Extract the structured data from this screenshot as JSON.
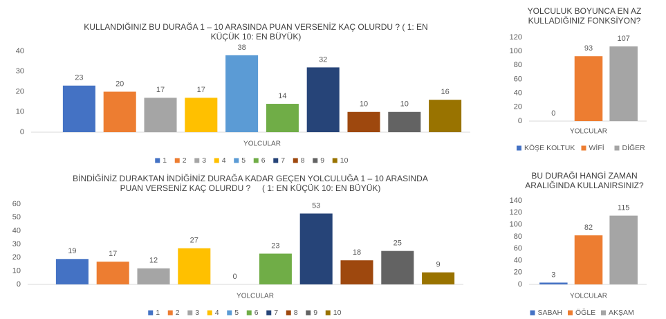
{
  "chart_data": [
    {
      "type": "bar",
      "title": [
        "KULLANDIĞINIZ BU DURAĞA 1 – 10 ARASINDA PUAN VERSENİZ KAÇ OLURDU ? ( 1: EN",
        "KÜÇÜK 10: EN BÜYÜK)"
      ],
      "categories": [
        "YOLCULAR"
      ],
      "ylim": [
        0,
        40
      ],
      "yticks": [
        0,
        10,
        20,
        30,
        40
      ],
      "series": [
        {
          "name": "1",
          "color": "#4472c4",
          "values": [
            23
          ]
        },
        {
          "name": "2",
          "color": "#ed7d31",
          "values": [
            20
          ]
        },
        {
          "name": "3",
          "color": "#a5a5a5",
          "values": [
            17
          ]
        },
        {
          "name": "4",
          "color": "#ffc000",
          "values": [
            17
          ]
        },
        {
          "name": "5",
          "color": "#5b9bd5",
          "values": [
            38
          ]
        },
        {
          "name": "6",
          "color": "#70ad47",
          "values": [
            14
          ]
        },
        {
          "name": "7",
          "color": "#264478",
          "values": [
            32
          ]
        },
        {
          "name": "8",
          "color": "#9e480e",
          "values": [
            10
          ]
        },
        {
          "name": "9",
          "color": "#636363",
          "values": [
            10
          ]
        },
        {
          "name": "10",
          "color": "#997300",
          "values": [
            16
          ]
        }
      ]
    },
    {
      "type": "bar",
      "title": [
        "BİNDİĞİNİZ DURAKTAN İNDİĞİNİZ DURAĞA KADAR GEÇEN YOLCULUĞA 1 – 10 ARASINDA",
        "PUAN VERSENİZ KAÇ OLURDU ?     ( 1: EN KÜÇÜK 10: EN BÜYÜK)"
      ],
      "categories": [
        "YOLCULAR"
      ],
      "ylim": [
        0,
        60
      ],
      "yticks": [
        0,
        10,
        20,
        30,
        40,
        50,
        60
      ],
      "series": [
        {
          "name": "1",
          "color": "#4472c4",
          "values": [
            19
          ]
        },
        {
          "name": "2",
          "color": "#ed7d31",
          "values": [
            17
          ]
        },
        {
          "name": "3",
          "color": "#a5a5a5",
          "values": [
            12
          ]
        },
        {
          "name": "4",
          "color": "#ffc000",
          "values": [
            27
          ]
        },
        {
          "name": "5",
          "color": "#5b9bd5",
          "values": [
            0
          ]
        },
        {
          "name": "6",
          "color": "#70ad47",
          "values": [
            23
          ]
        },
        {
          "name": "7",
          "color": "#264478",
          "values": [
            53
          ]
        },
        {
          "name": "8",
          "color": "#9e480e",
          "values": [
            18
          ]
        },
        {
          "name": "9",
          "color": "#636363",
          "values": [
            25
          ]
        },
        {
          "name": "10",
          "color": "#997300",
          "values": [
            9
          ]
        }
      ]
    },
    {
      "type": "bar",
      "title": [
        "YOLCULUK BOYUNCA EN AZ",
        "KULLADIĞINIZ FONKSİYON?"
      ],
      "categories": [
        "YOLCULAR"
      ],
      "ylim": [
        0,
        120
      ],
      "yticks": [
        0,
        20,
        40,
        60,
        80,
        100,
        120
      ],
      "series": [
        {
          "name": "KÖŞE KOLTUK",
          "color": "#4472c4",
          "values": [
            0
          ]
        },
        {
          "name": "WİFİ",
          "color": "#ed7d31",
          "values": [
            93
          ]
        },
        {
          "name": "DİĞER",
          "color": "#a5a5a5",
          "values": [
            107
          ]
        }
      ]
    },
    {
      "type": "bar",
      "title": [
        "BU DURAĞI HANGİ ZAMAN",
        "ARALIĞINDA KULLANIRSINIZ?"
      ],
      "categories": [
        "YOLCULAR"
      ],
      "ylim": [
        0,
        140
      ],
      "yticks": [
        0,
        20,
        40,
        60,
        80,
        100,
        120,
        140
      ],
      "series": [
        {
          "name": "SABAH",
          "color": "#4472c4",
          "values": [
            3
          ]
        },
        {
          "name": "ÖĞLE",
          "color": "#ed7d31",
          "values": [
            82
          ]
        },
        {
          "name": "AKŞAM",
          "color": "#a5a5a5",
          "values": [
            115
          ]
        }
      ]
    }
  ]
}
